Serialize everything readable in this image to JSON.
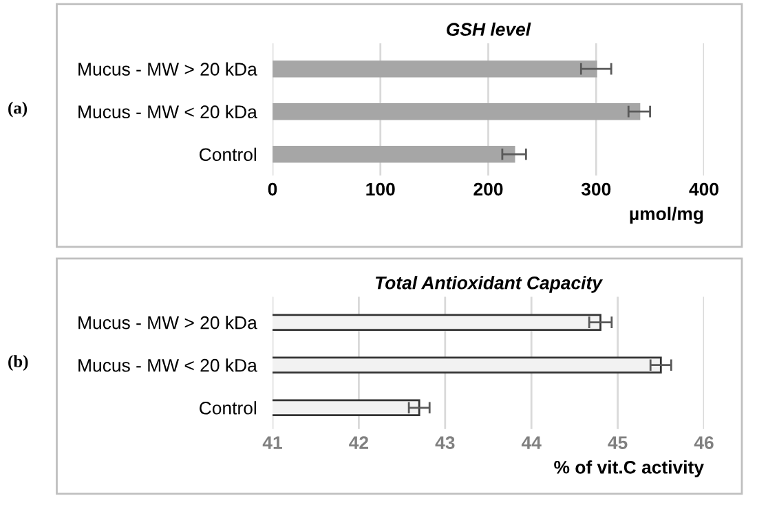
{
  "chart_data": [
    {
      "type": "bar",
      "orientation": "horizontal",
      "title": "GSH level",
      "xlabel": "µmol/mg",
      "annotations": [
        "(a)"
      ],
      "categories": [
        "Mucus - MW > 20 kDa",
        "Mucus - MW < 20 kDa",
        "Control"
      ],
      "values": [
        300,
        340,
        224
      ],
      "errors": [
        14,
        10,
        11
      ],
      "color": "#a6a6a6",
      "xlim": [
        0,
        400
      ],
      "xticks": [
        0,
        100,
        200,
        300,
        400
      ],
      "grid": "x"
    },
    {
      "type": "bar",
      "orientation": "horizontal",
      "title": "Total Antioxidant Capacity",
      "xlabel": "% of vit.C activity",
      "annotations": [
        "(b)"
      ],
      "categories": [
        "Mucus - MW > 20 kDa",
        "Mucus - MW < 20 kDa",
        "Control"
      ],
      "values": [
        44.8,
        45.5,
        42.7
      ],
      "errors": [
        0.13,
        0.12,
        0.12
      ],
      "color": "#f2f2f2",
      "xlim": [
        41,
        46
      ],
      "xticks": [
        41,
        42,
        43,
        44,
        45,
        46
      ],
      "grid": "x"
    }
  ]
}
